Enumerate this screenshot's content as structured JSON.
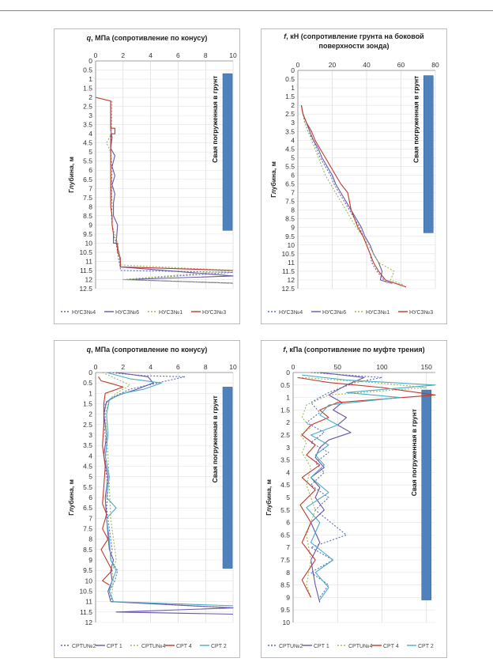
{
  "chart_data": [
    {
      "type": "line",
      "title": "q, МПа (сопротивление по конусу)",
      "title_italic": "q",
      "xlabel": "",
      "ylabel": "Глубина, м",
      "xlim": [
        0,
        10
      ],
      "xticks": [
        0,
        2,
        4,
        6,
        8,
        10
      ],
      "ylim": [
        0,
        12.5
      ],
      "yticks_step": 0.5,
      "y_inverted": true,
      "grid": true,
      "legend_position": "bottom",
      "pile_label": "Свая погруженная в грунт",
      "pile_range": [
        0.7,
        9.3
      ],
      "pile_x": 9.6,
      "series": [
        {
          "name": "НУСЗ№4",
          "color": "#5b6bb5",
          "dash": "2,2",
          "x": [
            1.1,
            1.1,
            1.15,
            1.1,
            1.2,
            1.15,
            1.2,
            1.15,
            1.2,
            1.3,
            1.5,
            1.6,
            1.7,
            1.8,
            1.8,
            10,
            2.0,
            10
          ],
          "y": [
            2.2,
            3.0,
            4.0,
            5.0,
            6.0,
            7.0,
            8.0,
            8.5,
            9.0,
            9.5,
            10.0,
            10.5,
            11.0,
            11.3,
            11.5,
            11.6,
            12.0,
            12.2
          ]
        },
        {
          "name": "НУСЗ№6",
          "color": "#6a55a8",
          "dash": "",
          "x": [
            1.1,
            1.1,
            1.2,
            1.1,
            1.4,
            1.2,
            1.4,
            1.2,
            1.4,
            1.3,
            1.3,
            1.6,
            1.5,
            1.7,
            1.8,
            1.8,
            10,
            2.2,
            10
          ],
          "y": [
            2.2,
            3.8,
            4.2,
            4.8,
            5.2,
            5.8,
            6.3,
            6.8,
            7.3,
            7.8,
            8.5,
            9.0,
            10.0,
            10.5,
            11.0,
            11.3,
            11.8,
            12.0,
            12.2
          ]
        },
        {
          "name": "НУСЗ№1",
          "color": "#9bbb59",
          "dash": "2,2",
          "x": [
            1.2,
            1.15,
            0.8,
            1.1,
            1.1,
            1.2,
            1.1,
            1.2,
            1.2,
            1.4,
            1.6,
            1.7,
            1.8,
            10,
            2.0,
            10
          ],
          "y": [
            2.2,
            4.0,
            4.5,
            5.0,
            6.0,
            7.0,
            8.0,
            8.5,
            9.0,
            9.5,
            10.0,
            10.5,
            11.2,
            11.5,
            12.0,
            12.2
          ]
        },
        {
          "name": "НУСЗ№3",
          "color": "#c0392b",
          "dash": "",
          "x": [
            0,
            1.1,
            1.1,
            1.4,
            1.4,
            1.1,
            1.1,
            1.1,
            1.2,
            1.2,
            1.3,
            1.3,
            1.6,
            1.6,
            1.8,
            1.8,
            1.8,
            10
          ],
          "y": [
            2.0,
            2.2,
            3.7,
            3.7,
            4.0,
            4.0,
            5.0,
            8.0,
            8.5,
            9.0,
            9.5,
            10.0,
            10.0,
            10.5,
            10.8,
            11.0,
            11.3,
            11.5
          ]
        }
      ]
    },
    {
      "type": "line",
      "title": "f, кН (сопротивление грунта на боковой поверхности зонда)",
      "title_italic": "f",
      "xlabel": "",
      "ylabel": "Глубина, м",
      "xlim": [
        0,
        80
      ],
      "xticks": [
        0,
        20,
        40,
        60,
        80
      ],
      "ylim": [
        0,
        12.5
      ],
      "yticks_step": 0.5,
      "y_inverted": true,
      "grid": true,
      "legend_position": "bottom",
      "pile_label": "Свая погруженная в грунт",
      "pile_range": [
        0.3,
        9.3
      ],
      "pile_x": 76,
      "series": [
        {
          "name": "НУСЗ№4",
          "color": "#5b6bb5",
          "dash": "2,2",
          "x": [
            2,
            3,
            4,
            6,
            9,
            11,
            13,
            16,
            19,
            21,
            24,
            27,
            30,
            33,
            36,
            38,
            40,
            42,
            43,
            46,
            50,
            52
          ],
          "y": [
            2.0,
            2.5,
            3.0,
            3.5,
            4.0,
            4.5,
            5.0,
            5.5,
            6.0,
            6.5,
            7.0,
            7.5,
            8.0,
            8.5,
            9.0,
            9.5,
            10.0,
            10.5,
            11.0,
            11.5,
            12.0,
            12.2
          ]
        },
        {
          "name": "НУСЗ№6",
          "color": "#6a55a8",
          "dash": "",
          "x": [
            2,
            3,
            5,
            7,
            9,
            12,
            14,
            17,
            20,
            22,
            25,
            28,
            31,
            34,
            37,
            39,
            42,
            44,
            47,
            49,
            48,
            55
          ],
          "y": [
            2.0,
            2.5,
            3.0,
            3.5,
            4.0,
            4.5,
            5.0,
            5.5,
            6.0,
            6.5,
            7.0,
            7.5,
            8.0,
            8.5,
            9.0,
            9.5,
            10.0,
            10.5,
            11.0,
            11.5,
            12.0,
            12.2
          ]
        },
        {
          "name": "НУСЗ№1",
          "color": "#9bbb59",
          "dash": "2,2",
          "x": [
            2,
            3,
            4,
            6,
            8,
            10,
            12,
            14,
            16,
            19,
            22,
            25,
            28,
            31,
            34,
            38,
            41,
            44,
            47,
            56,
            54,
            62
          ],
          "y": [
            2.0,
            2.5,
            3.0,
            3.5,
            4.0,
            4.5,
            5.0,
            5.5,
            6.0,
            6.5,
            7.0,
            7.5,
            8.0,
            8.5,
            9.0,
            9.5,
            10.0,
            10.5,
            11.0,
            11.5,
            12.0,
            12.3
          ]
        },
        {
          "name": "НУСЗ№3",
          "color": "#c0392b",
          "dash": "",
          "x": [
            2,
            3,
            5,
            8,
            10,
            13,
            16,
            19,
            22,
            25,
            29,
            30,
            31,
            33,
            35,
            38,
            40,
            42,
            44,
            47,
            51,
            63
          ],
          "y": [
            2.0,
            2.5,
            3.0,
            3.5,
            4.0,
            4.5,
            5.0,
            5.5,
            6.0,
            6.5,
            7.0,
            7.5,
            8.0,
            8.5,
            9.0,
            9.5,
            10.0,
            10.5,
            11.0,
            11.5,
            12.0,
            12.4
          ]
        }
      ]
    },
    {
      "type": "line",
      "title": "q, МПа (сопротивление по конусу)",
      "title_italic": "q",
      "xlabel": "",
      "ylabel": "Глубина, м",
      "xlim": [
        0,
        10
      ],
      "xticks": [
        0,
        2,
        4,
        6,
        8,
        10
      ],
      "ylim": [
        0,
        12
      ],
      "yticks_step": 0.5,
      "y_inverted": true,
      "grid": true,
      "legend_position": "bottom",
      "pile_label": "Свая погруженная в грунт",
      "pile_range": [
        0.7,
        9.4
      ],
      "pile_x": 9.6,
      "series": [
        {
          "name": "CPTU№2",
          "color": "#5b6bb5",
          "dash": "2,2",
          "x": [
            1.0,
            3.5,
            6.5,
            4.5,
            2.5,
            1.2,
            0.7,
            0.6,
            0.8,
            0.7,
            0.9,
            0.8,
            1.0,
            1.2,
            1.1,
            1.6,
            1.4,
            1.0,
            1.2,
            10
          ],
          "y": [
            0.0,
            0.15,
            0.2,
            0.5,
            0.8,
            1.2,
            1.5,
            2.5,
            3.5,
            4.5,
            5.5,
            6.5,
            7.5,
            8.5,
            9.0,
            9.5,
            10.0,
            10.5,
            11.0,
            11.3
          ]
        },
        {
          "name": "CPT 1",
          "color": "#6a55a8",
          "dash": "",
          "x": [
            1.5,
            3.8,
            4.2,
            3.0,
            1.6,
            0.8,
            0.6,
            0.8,
            0.6,
            0.9,
            0.7,
            0.8,
            0.9,
            1.0,
            1.3,
            1.1,
            1.2,
            0.9,
            1.1,
            10,
            1.5,
            10
          ],
          "y": [
            0.0,
            0.2,
            0.5,
            0.8,
            1.1,
            1.4,
            2.0,
            3.0,
            4.0,
            5.0,
            6.0,
            7.0,
            7.8,
            8.5,
            9.0,
            9.5,
            10.0,
            10.5,
            11.0,
            11.3,
            11.5,
            11.6
          ]
        },
        {
          "name": "CPTU№4",
          "color": "#9bbb59",
          "dash": "2,2",
          "x": [
            0.5,
            1.5,
            2.5,
            1.5,
            1.0,
            0.7,
            0.8,
            0.9,
            1.0,
            1.1,
            1.4,
            1.5,
            1.2,
            1.3,
            1.2,
            1.1
          ],
          "y": [
            0.0,
            0.3,
            0.6,
            1.0,
            1.3,
            2.0,
            3.0,
            4.0,
            5.5,
            7.0,
            8.5,
            9.0,
            9.5,
            10.0,
            10.5,
            11.0
          ]
        },
        {
          "name": "CPT 4",
          "color": "#c0392b",
          "dash": "",
          "x": [
            0.2,
            0.4,
            1.0,
            2.0,
            0.7,
            0.6,
            0.6,
            0.5,
            0.7,
            0.6,
            0.5,
            0.8,
            0.5,
            0.9,
            0.4,
            1.2,
            0.5,
            1.0
          ],
          "y": [
            0.2,
            0.4,
            0.5,
            0.7,
            1.0,
            1.5,
            2.5,
            3.5,
            4.5,
            5.5,
            6.3,
            6.8,
            7.5,
            8.0,
            8.5,
            9.5,
            10.0,
            10.2
          ]
        },
        {
          "name": "CPT 2",
          "color": "#4bacc6",
          "dash": "",
          "x": [
            0.8,
            2.5,
            4.8,
            3.5,
            2.0,
            1.0,
            0.8,
            0.9,
            0.7,
            1.0,
            0.8,
            1.5,
            0.8,
            1.0,
            1.1,
            1.5,
            1.2,
            1.0,
            1.3,
            10
          ],
          "y": [
            0.0,
            0.3,
            0.5,
            0.8,
            1.0,
            1.3,
            2.0,
            3.0,
            4.0,
            5.0,
            6.0,
            6.5,
            7.0,
            8.0,
            9.0,
            9.5,
            10.0,
            10.5,
            11.0,
            11.2
          ]
        }
      ]
    },
    {
      "type": "line",
      "title": "f, кПа (сопротивление по муфте трения)",
      "title_italic": "f",
      "xlabel": "",
      "ylabel": "Глубина, м",
      "xlim": [
        0,
        160
      ],
      "xticks": [
        0,
        50,
        100,
        150
      ],
      "ylim": [
        0,
        10
      ],
      "yticks_step": 0.5,
      "y_inverted": true,
      "grid": true,
      "legend_position": "bottom",
      "pile_label": "Свая погруженная в грунт",
      "pile_range": [
        0.7,
        9.1
      ],
      "pile_x": 150,
      "series": [
        {
          "name": "CPTU№2",
          "color": "#5b6bb5",
          "dash": "2,2",
          "x": [
            20,
            60,
            100,
            70,
            40,
            20,
            30,
            15,
            35,
            20,
            40,
            25,
            35,
            20,
            40,
            25,
            60,
            20,
            45,
            20,
            40,
            30
          ],
          "y": [
            0.0,
            0.1,
            0.2,
            0.4,
            0.8,
            1.2,
            1.6,
            2.0,
            2.4,
            2.8,
            3.2,
            3.6,
            4.0,
            4.5,
            5.0,
            5.5,
            6.5,
            7.0,
            7.5,
            8.0,
            8.5,
            9.0
          ]
        },
        {
          "name": "CPT 1",
          "color": "#6a55a8",
          "dash": "",
          "x": [
            30,
            80,
            60,
            40,
            55,
            45,
            60,
            50,
            65,
            40,
            30,
            25,
            35,
            20,
            30,
            25,
            35,
            20,
            30,
            20,
            25,
            30
          ],
          "y": [
            0.0,
            0.2,
            0.5,
            0.9,
            1.2,
            1.5,
            1.8,
            2.1,
            2.4,
            2.7,
            3.0,
            3.4,
            3.8,
            4.2,
            4.6,
            5.0,
            5.5,
            6.0,
            6.8,
            7.5,
            8.5,
            9.2
          ]
        },
        {
          "name": "CPTU№4",
          "color": "#9bbb59",
          "dash": "2,2",
          "x": [
            10,
            90,
            150,
            40,
            15,
            10,
            20,
            8,
            15,
            10,
            20,
            15,
            25,
            15,
            20,
            15,
            20
          ],
          "y": [
            0.2,
            0.4,
            0.6,
            0.9,
            1.3,
            1.8,
            2.2,
            2.5,
            2.8,
            3.2,
            3.8,
            4.5,
            5.5,
            6.5,
            7.5,
            8.5,
            9.0
          ]
        },
        {
          "name": "CPT 4",
          "color": "#c0392b",
          "dash": "",
          "x": [
            5,
            40,
            100,
            160,
            50,
            30,
            40,
            20,
            10,
            25,
            15,
            30,
            10,
            25,
            8,
            20,
            10,
            25,
            10,
            20
          ],
          "y": [
            0.2,
            0.4,
            0.6,
            0.9,
            1.2,
            1.5,
            1.8,
            2.1,
            2.5,
            2.9,
            3.3,
            3.7,
            4.2,
            4.7,
            5.3,
            6.0,
            6.8,
            7.5,
            8.3,
            9.0
          ]
        },
        {
          "name": "CPT 2",
          "color": "#4bacc6",
          "dash": "",
          "x": [
            10,
            60,
            160,
            60,
            120,
            40,
            30,
            50,
            20,
            40,
            25,
            35,
            20,
            40,
            15,
            30,
            20,
            45,
            25,
            40,
            30
          ],
          "y": [
            0.1,
            0.3,
            0.5,
            0.8,
            1.0,
            1.3,
            1.7,
            2.1,
            2.5,
            2.9,
            3.3,
            3.7,
            4.2,
            4.8,
            5.4,
            6.0,
            6.8,
            7.5,
            8.0,
            8.6,
            9.1
          ]
        }
      ]
    }
  ]
}
